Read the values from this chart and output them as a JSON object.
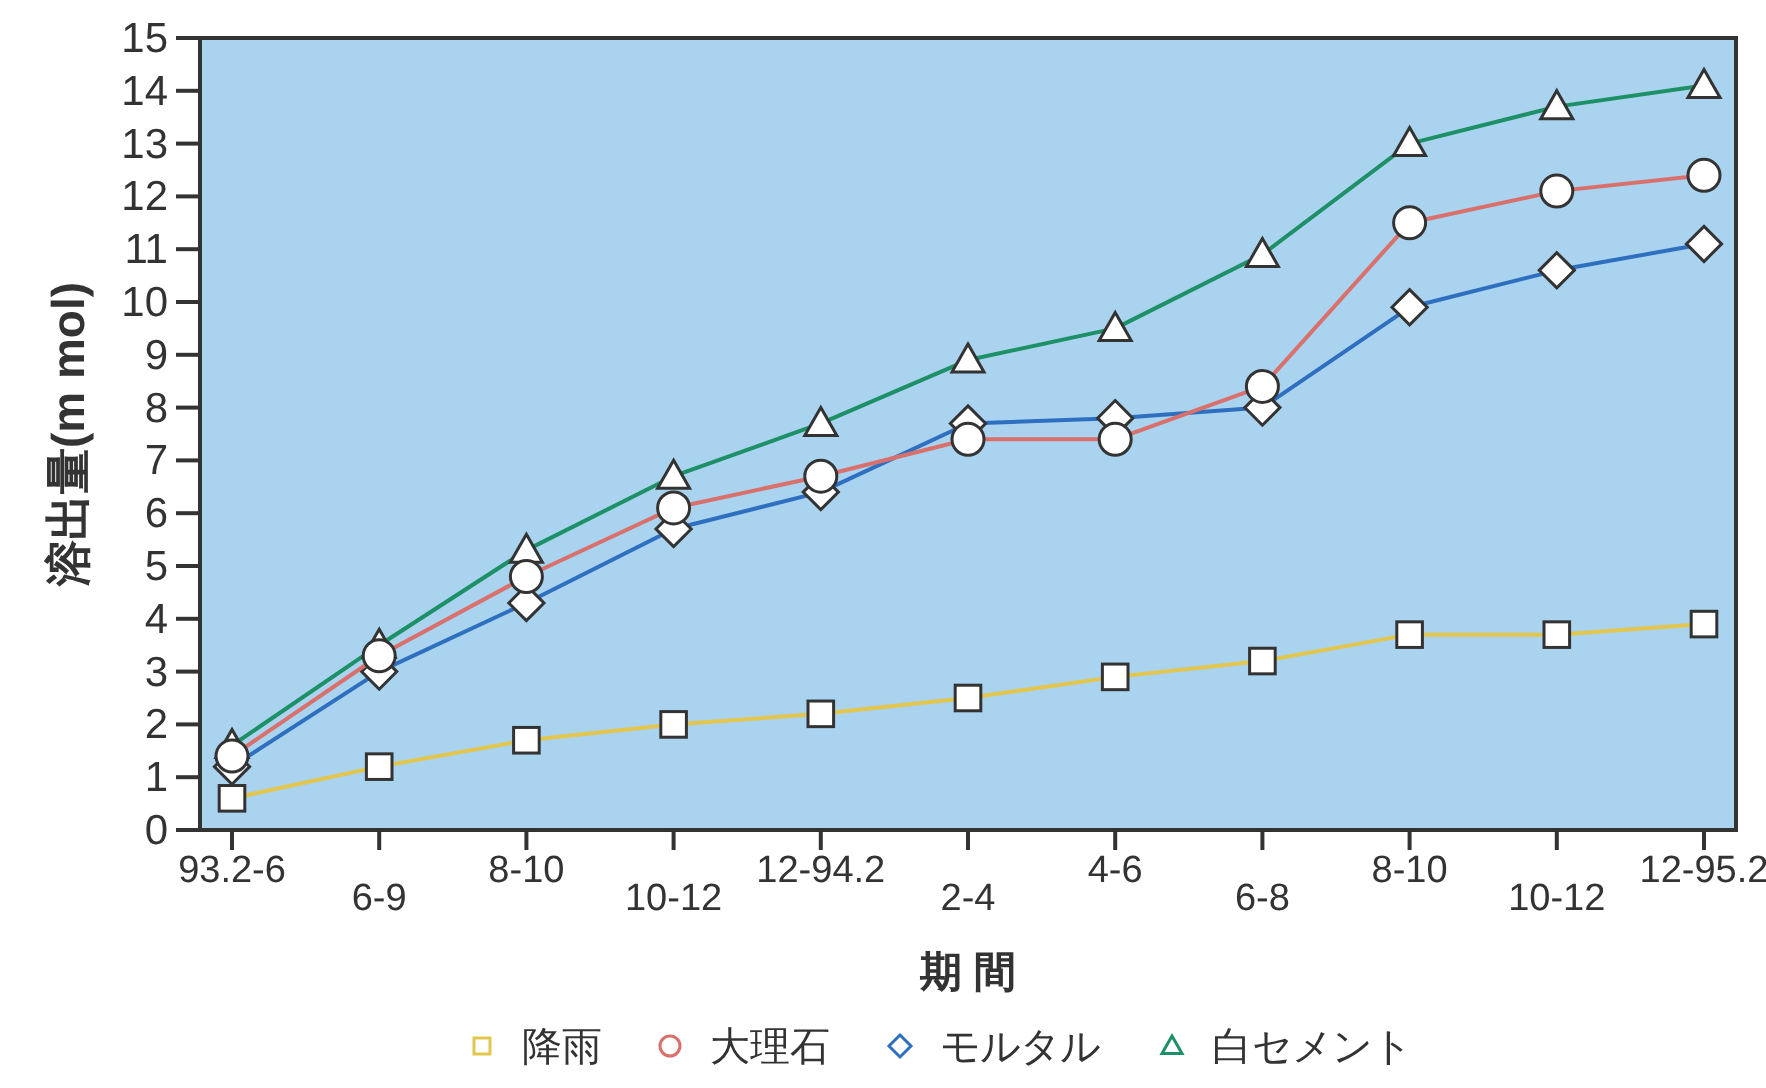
{
  "chart_data": {
    "type": "line",
    "xlabel": "期 間",
    "ylabel": "溶出量(m mol)",
    "categories": [
      "93.2-6",
      "6-9",
      "8-10",
      "10-12",
      "12-94.2",
      "2-4",
      "4-6",
      "6-8",
      "8-10",
      "10-12",
      "12-95.2"
    ],
    "ylim": [
      0,
      15
    ],
    "yticks": [
      0,
      1,
      2,
      3,
      4,
      5,
      6,
      7,
      8,
      9,
      10,
      11,
      12,
      13,
      14,
      15
    ],
    "grid": false,
    "legend": "bottom",
    "line_style": "solid",
    "series": [
      {
        "name": "降雨",
        "color": "#e3c64e",
        "marker": "square",
        "values": [
          0.6,
          1.2,
          1.7,
          2.0,
          2.2,
          2.5,
          2.9,
          3.2,
          3.7,
          3.7,
          3.9
        ]
      },
      {
        "name": "大理石",
        "color": "#d9706c",
        "marker": "circle",
        "values": [
          1.4,
          3.3,
          4.8,
          6.1,
          6.7,
          7.4,
          7.4,
          8.4,
          11.5,
          12.1,
          12.4
        ]
      },
      {
        "name": "モルタル",
        "color": "#2f6fbf",
        "marker": "diamond",
        "values": [
          1.2,
          3.0,
          4.3,
          5.7,
          6.4,
          7.7,
          7.8,
          8.0,
          9.9,
          10.6,
          11.1
        ]
      },
      {
        "name": "白セメント",
        "color": "#1d9068",
        "marker": "triangle",
        "values": [
          1.6,
          3.5,
          5.3,
          6.7,
          7.7,
          8.9,
          9.5,
          10.9,
          13.0,
          13.7,
          14.1
        ]
      }
    ]
  }
}
